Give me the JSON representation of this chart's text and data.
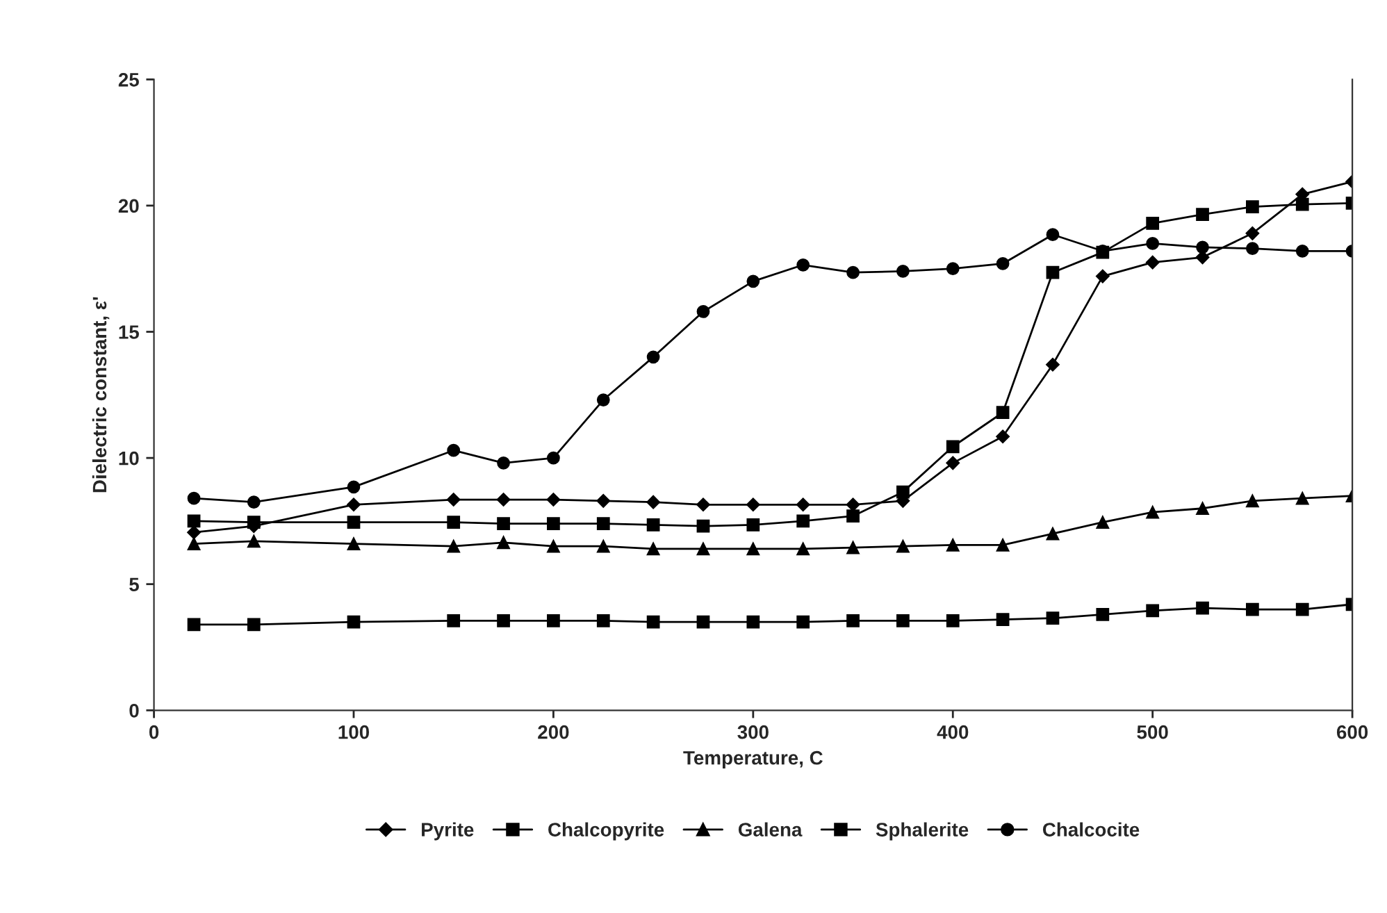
{
  "chart_data": {
    "type": "line",
    "xlabel": "Temperature, C",
    "ylabel": "Dielectric constant, ε'",
    "x": [
      20,
      50,
      100,
      150,
      175,
      200,
      225,
      250,
      275,
      300,
      325,
      350,
      375,
      400,
      425,
      450,
      475,
      500,
      525,
      550,
      575,
      600
    ],
    "xlim": [
      0,
      600
    ],
    "xticks": [
      0,
      100,
      200,
      300,
      400,
      500,
      600
    ],
    "ylim": [
      0,
      25
    ],
    "yticks": [
      0,
      5,
      10,
      15,
      20,
      25
    ],
    "grid": false,
    "legend": "bottom",
    "line_style": "solid",
    "series": [
      {
        "name": "Pyrite",
        "color": "#000000",
        "marker": "diamond",
        "values": [
          7.05,
          7.3,
          8.15,
          8.35,
          8.35,
          8.35,
          8.3,
          8.25,
          8.15,
          8.15,
          8.15,
          8.15,
          8.3,
          9.8,
          10.85,
          13.7,
          17.2,
          17.75,
          17.95,
          18.9,
          20.45,
          20.95
        ]
      },
      {
        "name": "Chalcopyrite",
        "color": "#000000",
        "marker": "square",
        "values": [
          7.5,
          7.45,
          7.45,
          7.45,
          7.4,
          7.4,
          7.4,
          7.35,
          7.3,
          7.35,
          7.5,
          7.7,
          8.65,
          10.45,
          11.8,
          17.35,
          18.15,
          19.3,
          19.65,
          19.95,
          20.05,
          20.1
        ]
      },
      {
        "name": "Galena",
        "color": "#000000",
        "marker": "triangle",
        "values": [
          6.6,
          6.7,
          6.6,
          6.5,
          6.65,
          6.5,
          6.5,
          6.4,
          6.4,
          6.4,
          6.4,
          6.45,
          6.5,
          6.55,
          6.55,
          7.0,
          7.45,
          7.85,
          8.0,
          8.3,
          8.4,
          8.5
        ]
      },
      {
        "name": "Sphalerite",
        "color": "#000000",
        "marker": "square",
        "values": [
          3.4,
          3.4,
          3.5,
          3.55,
          3.55,
          3.55,
          3.55,
          3.5,
          3.5,
          3.5,
          3.5,
          3.55,
          3.55,
          3.55,
          3.6,
          3.65,
          3.8,
          3.95,
          4.05,
          4.0,
          4.0,
          4.2
        ]
      },
      {
        "name": "Chalcocite",
        "color": "#000000",
        "marker": "circle",
        "values": [
          8.4,
          8.25,
          8.85,
          10.3,
          9.8,
          10.0,
          12.3,
          14.0,
          15.8,
          17.0,
          17.65,
          17.35,
          17.4,
          17.5,
          17.7,
          18.85,
          18.2,
          18.5,
          18.35,
          18.3,
          18.2,
          18.2
        ]
      }
    ]
  }
}
